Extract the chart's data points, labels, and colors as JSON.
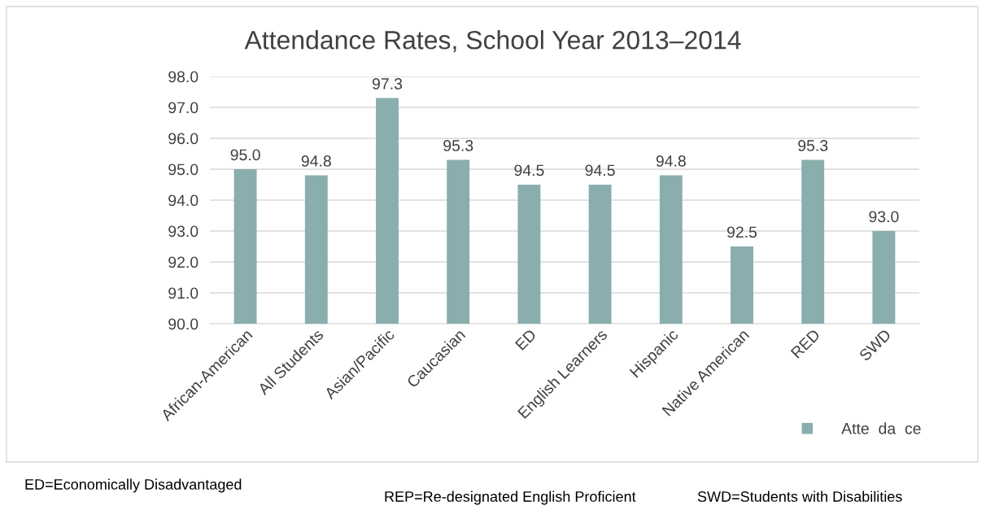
{
  "chart_data": {
    "type": "bar",
    "title": "Attendance Rates, School Year 2013–2014",
    "categories": [
      "African-American",
      "All Students",
      "Asian/Pacific",
      "Caucasian",
      "ED",
      "English Learners",
      "Hispanic",
      "Native American",
      "RED",
      "SWD"
    ],
    "series": [
      {
        "name": "Atte  da  ce",
        "color": "#8aadad",
        "values": [
          95.0,
          94.8,
          97.3,
          95.3,
          94.5,
          94.5,
          94.8,
          92.5,
          95.3,
          93.0
        ],
        "value_labels": [
          "95.0",
          "94.8",
          "97.3",
          "95.3",
          "94.5",
          "94.5",
          "94.8",
          "92.5",
          "95.3",
          "93.0"
        ]
      }
    ],
    "ylim": [
      90,
      98
    ],
    "yticks": [
      {
        "value": 90,
        "label": "90.0"
      },
      {
        "value": 91,
        "label": "91.0"
      },
      {
        "value": 92,
        "label": "92.0"
      },
      {
        "value": 93,
        "label": "93.0"
      },
      {
        "value": 94,
        "label": "94.0"
      },
      {
        "value": 95,
        "label": "95.0"
      },
      {
        "value": 96,
        "label": "96.0"
      },
      {
        "value": 97,
        "label": "97.0"
      },
      {
        "value": 98,
        "label": "98.0"
      }
    ],
    "grid": "y",
    "legend": "bottom right",
    "annotations": [
      "ED=Economically Disadvantaged",
      "REP=Re-designated English Proficient",
      "SWD=Students with Disabilities"
    ]
  }
}
